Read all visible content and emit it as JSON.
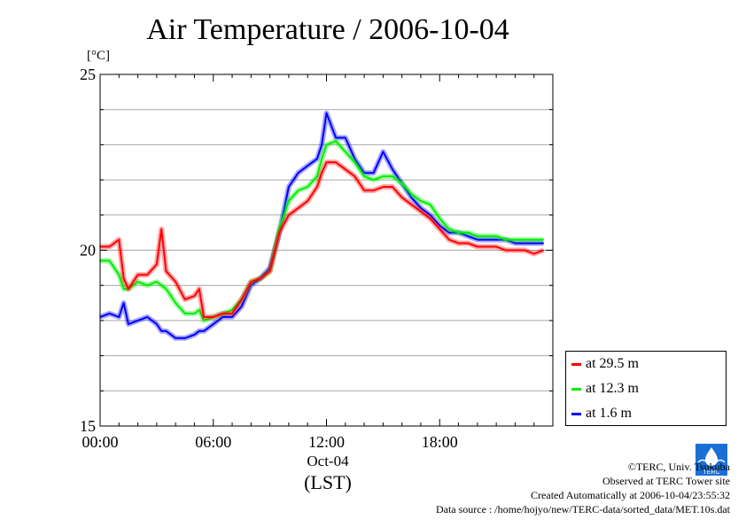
{
  "header": {
    "title": "Air Temperature / 2006-10-04",
    "unit": "[°C]"
  },
  "chart_data": {
    "type": "line",
    "title": "Air Temperature / 2006-10-04",
    "ylabel": "[°C]",
    "xlabel": "(LST)",
    "x_date_label": "Oct-04",
    "ylim": [
      15,
      25
    ],
    "xlim": [
      0,
      24
    ],
    "y_ticks": [
      15,
      20,
      25
    ],
    "y_tick_labels": [
      "15",
      "20",
      "25"
    ],
    "x_ticks": [
      0,
      6,
      12,
      18
    ],
    "x_tick_labels": [
      "00:00",
      "06:00",
      "12:00",
      "18:00"
    ],
    "grid": true,
    "legend_position": "bottom-right, outside plot",
    "x": [
      0,
      0.5,
      1,
      1.25,
      1.5,
      2,
      2.5,
      3,
      3.25,
      3.5,
      4,
      4.5,
      5,
      5.25,
      5.5,
      6,
      6.5,
      7,
      7.5,
      8,
      8.5,
      9,
      9.5,
      10,
      10.5,
      11,
      11.5,
      11.75,
      12,
      12.5,
      13,
      13.5,
      14,
      14.5,
      15,
      15.5,
      16,
      16.5,
      17,
      17.5,
      18,
      18.5,
      19,
      19.5,
      20,
      20.5,
      21,
      21.5,
      22,
      22.5,
      23,
      23.5
    ],
    "series": [
      {
        "name": "at 29.5 m",
        "color": "#ff0000",
        "values": [
          20.1,
          20.1,
          20.3,
          19.2,
          18.9,
          19.3,
          19.3,
          19.6,
          20.6,
          19.4,
          19.1,
          18.6,
          18.7,
          18.9,
          18.1,
          18.1,
          18.2,
          18.2,
          18.6,
          19.1,
          19.2,
          19.4,
          20.5,
          21.0,
          21.2,
          21.4,
          21.8,
          22.2,
          22.5,
          22.5,
          22.3,
          22.1,
          21.7,
          21.7,
          21.8,
          21.8,
          21.5,
          21.3,
          21.1,
          20.9,
          20.6,
          20.3,
          20.2,
          20.2,
          20.1,
          20.1,
          20.1,
          20.0,
          20.0,
          20.0,
          19.9,
          20.0
        ]
      },
      {
        "name": "at 12.3 m",
        "color": "#00ee00",
        "values": [
          19.7,
          19.7,
          19.3,
          18.9,
          18.9,
          19.1,
          19.0,
          19.1,
          19.0,
          18.9,
          18.5,
          18.2,
          18.2,
          18.3,
          18.0,
          18.1,
          18.2,
          18.3,
          18.6,
          19.1,
          19.2,
          19.4,
          20.6,
          21.4,
          21.7,
          21.8,
          22.1,
          22.6,
          23.0,
          23.1,
          22.8,
          22.5,
          22.1,
          22.0,
          22.1,
          22.1,
          21.9,
          21.6,
          21.4,
          21.3,
          20.9,
          20.6,
          20.5,
          20.5,
          20.4,
          20.4,
          20.4,
          20.3,
          20.3,
          20.3,
          20.3,
          20.3
        ]
      },
      {
        "name": "at 1.6 m",
        "color": "#0000ff",
        "values": [
          18.1,
          18.2,
          18.1,
          18.5,
          17.9,
          18.0,
          18.1,
          17.9,
          17.7,
          17.7,
          17.5,
          17.5,
          17.6,
          17.7,
          17.7,
          17.9,
          18.1,
          18.1,
          18.4,
          19.0,
          19.2,
          19.5,
          20.5,
          21.8,
          22.2,
          22.4,
          22.6,
          23.0,
          23.9,
          23.2,
          23.2,
          22.6,
          22.2,
          22.2,
          22.8,
          22.3,
          21.9,
          21.5,
          21.2,
          21.0,
          20.7,
          20.5,
          20.5,
          20.4,
          20.3,
          20.3,
          20.3,
          20.3,
          20.2,
          20.2,
          20.2,
          20.2
        ]
      }
    ]
  },
  "legend": {
    "items": [
      {
        "label": "at 29.5 m",
        "color": "#ff0000"
      },
      {
        "label": "at 12.3 m",
        "color": "#00ee00"
      },
      {
        "label": "at 1.6 m",
        "color": "#0000ff"
      }
    ]
  },
  "credits": {
    "copyright": "©TERC, Univ. Tsukuba",
    "observed": "Observed at TERC Tower site",
    "created": "Created Automatically at 2006-10-04/23:55:32",
    "source": "Data source : /home/hojyo/new/TERC-data/sorted_data/MET.10s.dat"
  },
  "logo": {
    "text": "TERC",
    "color": "#1a6fd6"
  }
}
